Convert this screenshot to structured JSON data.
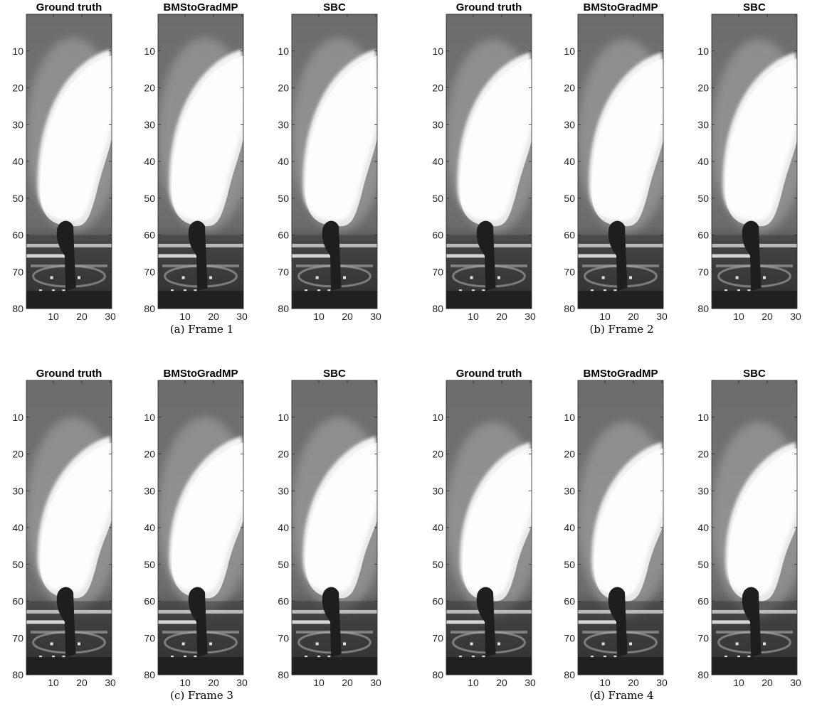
{
  "figure": {
    "panel_titles": [
      "Ground truth",
      "BMStoGradMP",
      "SBC"
    ],
    "y_ticks": [
      "10",
      "20",
      "30",
      "40",
      "50",
      "60",
      "70",
      "80"
    ],
    "x_ticks": [
      "10",
      "20",
      "30"
    ],
    "groups": [
      {
        "caption": "(a) Frame 1",
        "frame": 1
      },
      {
        "caption": "(b) Frame 2",
        "frame": 2
      },
      {
        "caption": "(c) Frame 3",
        "frame": 3
      },
      {
        "caption": "(d) Frame 4",
        "frame": 4
      }
    ]
  }
}
